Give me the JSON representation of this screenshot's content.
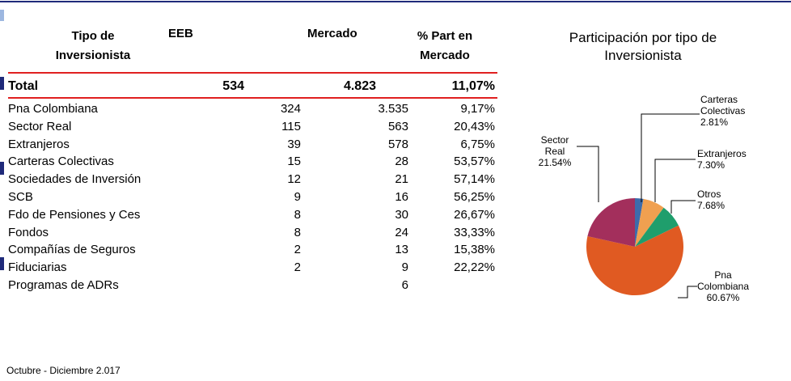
{
  "table": {
    "header": [
      "Tipo de Inversionista",
      "EEB",
      "Mercado",
      "% Part en Mercado"
    ],
    "total": [
      "Total",
      "534",
      "4.823",
      "11,07%"
    ],
    "rows": [
      [
        "Pna Colombiana",
        "324",
        "3.535",
        "9,17%"
      ],
      [
        "Sector Real",
        "115",
        "563",
        "20,43%"
      ],
      [
        "Extranjeros",
        "39",
        "578",
        "6,75%"
      ],
      [
        "Carteras Colectivas",
        "15",
        "28",
        "53,57%"
      ],
      [
        "Sociedades de Inversión",
        "12",
        "21",
        "57,14%"
      ],
      [
        "SCB",
        "9",
        "16",
        "56,25%"
      ],
      [
        "Fdo de Pensiones y Ces",
        "8",
        "30",
        "26,67%"
      ],
      [
        "Fondos",
        "8",
        "24",
        "33,33%"
      ],
      [
        "Compañías de Seguros",
        "2",
        "13",
        "15,38%"
      ],
      [
        "Fiduciarias",
        "2",
        "9",
        "22,22%"
      ],
      [
        "Programas de ADRs",
        null,
        "6",
        null
      ]
    ]
  },
  "chart_data": {
    "type": "pie",
    "title": "Participación por tipo de Inversionista",
    "categories": [
      "Carteras Colectivas",
      "Extranjeros",
      "Otros",
      "Pna Colombiana",
      "Sector Real"
    ],
    "values": [
      2.81,
      7.3,
      7.68,
      60.67,
      21.54
    ],
    "value_labels": [
      "2.81%",
      "7.30%",
      "7.68%",
      "60.67%",
      "21.54%"
    ],
    "colors": [
      "#3d6bab",
      "#f0a050",
      "#1f9e6c",
      "#e05a22",
      "#a32f5c"
    ]
  },
  "footer": "Octubre - Diciembre 2.017"
}
